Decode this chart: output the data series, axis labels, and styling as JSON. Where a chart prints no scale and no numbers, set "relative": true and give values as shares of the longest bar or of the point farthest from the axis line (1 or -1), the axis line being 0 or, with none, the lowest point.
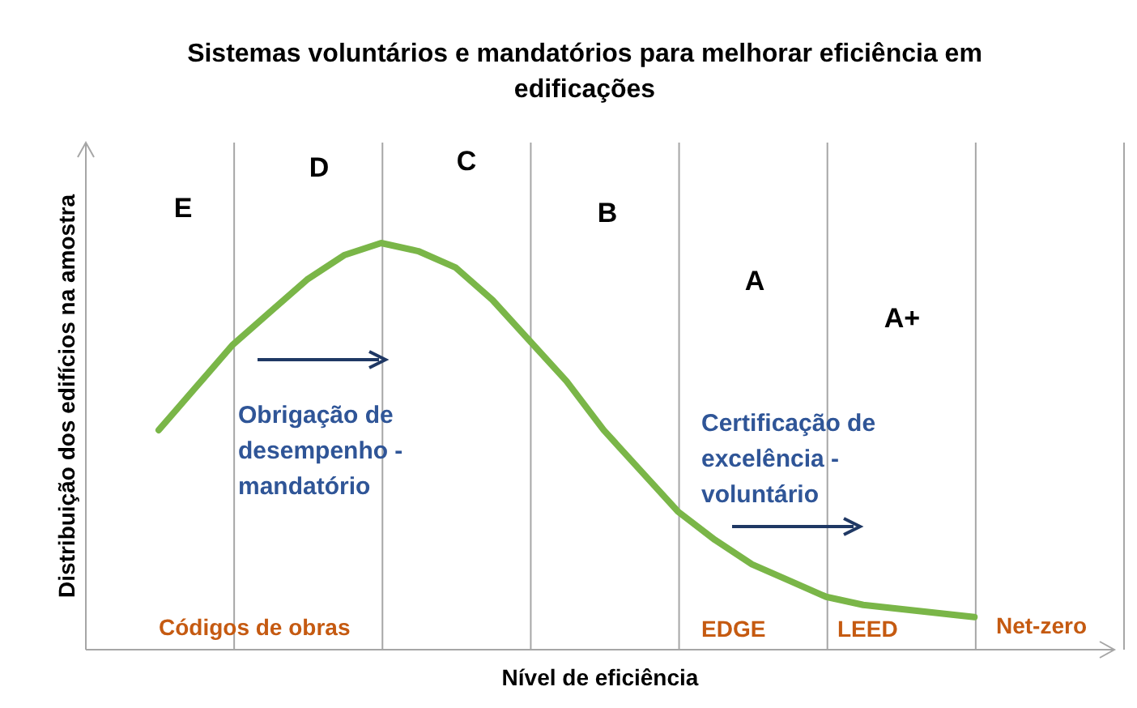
{
  "chart_data": {
    "type": "line",
    "title": "Sistemas voluntários e mandatórios para melhorar eficiência em edificações",
    "xlabel": "Nível de eficiência",
    "ylabel": "Distribuição dos edifícios na amostra",
    "relative": true,
    "grid": "x",
    "marker": "none",
    "line_style": "solid",
    "categories": [
      null,
      null,
      null,
      null,
      null,
      null,
      null,
      null,
      null,
      null,
      null,
      null,
      null,
      null,
      null,
      null,
      null,
      null,
      null,
      null,
      null,
      null,
      null
    ],
    "series": [
      {
        "color": "#7ab648",
        "values": [
          0.54,
          0.645,
          0.75,
          0.83,
          0.91,
          0.97,
          1,
          0.98,
          0.94,
          0.86,
          0.76,
          0.66,
          0.54,
          0.44,
          0.34,
          0.27,
          0.21,
          0.17,
          0.13,
          0.11,
          0.1,
          0.09,
          0.08
        ]
      }
    ],
    "annotations": [
      "E",
      "D",
      "C",
      "B",
      "A",
      "A+",
      "Obrigação de desempenho - mandatório",
      "Certificação de excelência - voluntário",
      "Códigos de obras",
      "EDGE",
      "LEED",
      "Net-zero"
    ]
  }
}
